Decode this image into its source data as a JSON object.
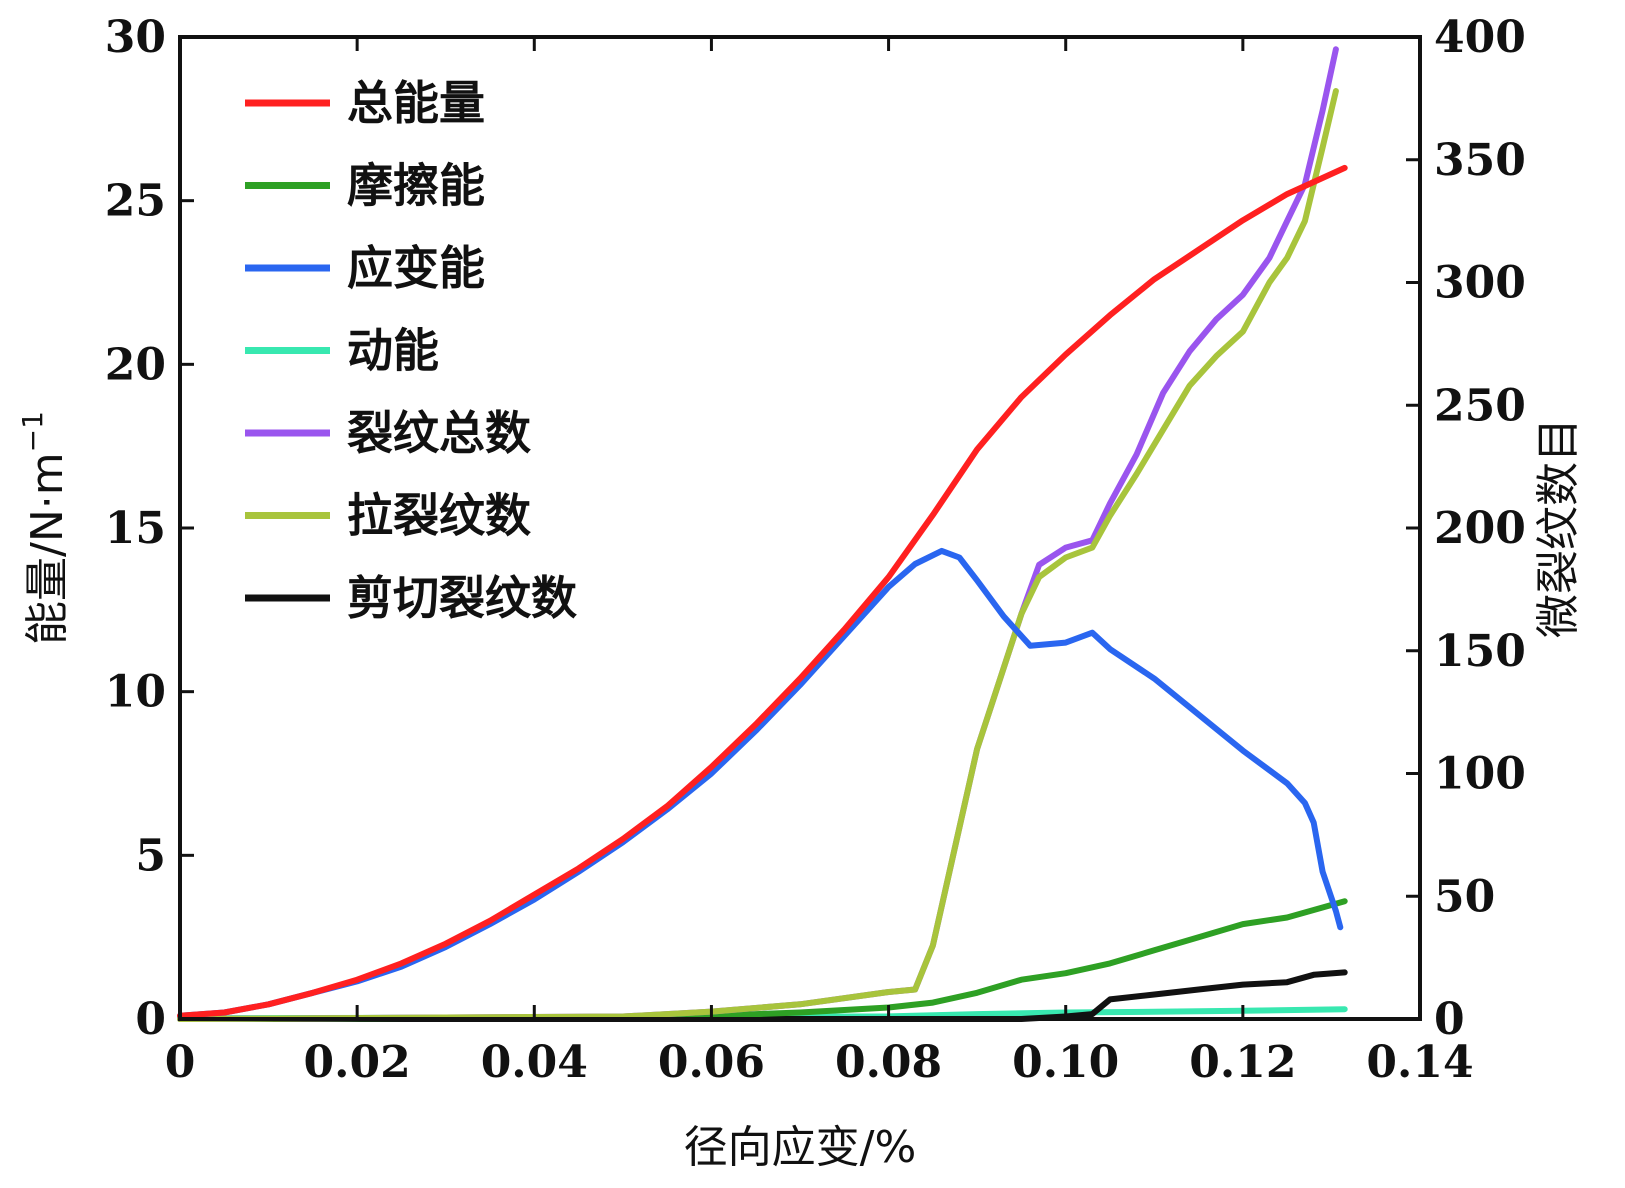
{
  "chart_data": {
    "type": "line",
    "xlabel": "径向应变/%",
    "ylabel": "能量/N·m",
    "ylabel_sup": "−1",
    "y2label": "微裂纹数目",
    "xlim": [
      0,
      0.14
    ],
    "ylim": [
      0,
      30
    ],
    "y2lim": [
      0,
      400
    ],
    "legend_position": "top-left",
    "grid": false,
    "x_ticks": [
      0,
      0.02,
      0.04,
      0.06,
      0.08,
      0.1,
      0.12,
      0.14
    ],
    "x_tick_labels": [
      "0",
      "0.02",
      "0.04",
      "0.06",
      "0.08",
      "0.10",
      "0.12",
      "0.14"
    ],
    "y_ticks": [
      0,
      5,
      10,
      15,
      20,
      25,
      30
    ],
    "y_tick_labels": [
      "0",
      "5",
      "10",
      "15",
      "20",
      "25",
      "30"
    ],
    "y2_ticks": [
      0,
      50,
      100,
      150,
      200,
      250,
      300,
      350,
      400
    ],
    "y2_tick_labels": [
      "0",
      "50",
      "100",
      "150",
      "200",
      "250",
      "300",
      "350",
      "400"
    ],
    "series": [
      {
        "name": "总能量",
        "axis": "left",
        "color": "#ff2020",
        "x": [
          0,
          0.005,
          0.01,
          0.015,
          0.02,
          0.025,
          0.03,
          0.035,
          0.04,
          0.045,
          0.05,
          0.055,
          0.06,
          0.065,
          0.07,
          0.075,
          0.08,
          0.085,
          0.09,
          0.095,
          0.1,
          0.105,
          0.11,
          0.115,
          0.12,
          0.125,
          0.1315
        ],
        "y": [
          0.1,
          0.2,
          0.45,
          0.8,
          1.2,
          1.7,
          2.3,
          3.0,
          3.8,
          4.6,
          5.5,
          6.5,
          7.7,
          9.0,
          10.4,
          11.9,
          13.5,
          15.4,
          17.4,
          19.0,
          20.3,
          21.5,
          22.6,
          23.5,
          24.4,
          25.2,
          26.0
        ]
      },
      {
        "name": "摩擦能",
        "axis": "left",
        "color": "#2ea024",
        "x": [
          0,
          0.02,
          0.04,
          0.06,
          0.07,
          0.08,
          0.085,
          0.09,
          0.095,
          0.1,
          0.105,
          0.11,
          0.115,
          0.12,
          0.125,
          0.1315
        ],
        "y": [
          0,
          0.02,
          0.05,
          0.1,
          0.2,
          0.35,
          0.5,
          0.8,
          1.2,
          1.4,
          1.7,
          2.1,
          2.5,
          2.9,
          3.1,
          3.6
        ]
      },
      {
        "name": "应变能",
        "axis": "left",
        "color": "#2a66f0",
        "x": [
          0,
          0.005,
          0.01,
          0.015,
          0.02,
          0.025,
          0.03,
          0.035,
          0.04,
          0.045,
          0.05,
          0.055,
          0.06,
          0.065,
          0.07,
          0.075,
          0.08,
          0.083,
          0.086,
          0.088,
          0.09,
          0.093,
          0.096,
          0.1,
          0.103,
          0.105,
          0.11,
          0.115,
          0.12,
          0.125,
          0.127,
          0.128,
          0.129,
          0.1305,
          0.131
        ],
        "y": [
          0.1,
          0.2,
          0.45,
          0.8,
          1.15,
          1.6,
          2.2,
          2.9,
          3.65,
          4.5,
          5.4,
          6.4,
          7.5,
          8.8,
          10.2,
          11.7,
          13.2,
          13.9,
          14.3,
          14.1,
          13.4,
          12.3,
          11.4,
          11.5,
          11.8,
          11.3,
          10.4,
          9.3,
          8.2,
          7.2,
          6.6,
          6.0,
          4.5,
          3.3,
          2.8
        ]
      },
      {
        "name": "动能",
        "axis": "left",
        "color": "#38e8b0",
        "x": [
          0,
          0.05,
          0.08,
          0.09,
          0.1,
          0.11,
          0.12,
          0.1315
        ],
        "y": [
          0.02,
          0.05,
          0.08,
          0.15,
          0.2,
          0.22,
          0.25,
          0.3
        ]
      },
      {
        "name": "裂纹总数",
        "axis": "right",
        "color": "#9a55ee",
        "x": [
          0,
          0.05,
          0.06,
          0.07,
          0.08,
          0.083,
          0.085,
          0.09,
          0.095,
          0.097,
          0.1,
          0.103,
          0.105,
          0.108,
          0.111,
          0.114,
          0.117,
          0.12,
          0.123,
          0.125,
          0.127,
          0.129,
          0.1305
        ],
        "y": [
          0,
          1,
          3,
          6,
          11,
          12,
          30,
          110,
          165,
          185,
          192,
          195,
          210,
          230,
          255,
          272,
          285,
          295,
          310,
          325,
          340,
          370,
          395
        ]
      },
      {
        "name": "拉裂纹数",
        "axis": "right",
        "color": "#a8c43c",
        "x": [
          0,
          0.05,
          0.06,
          0.07,
          0.08,
          0.083,
          0.085,
          0.09,
          0.095,
          0.097,
          0.1,
          0.103,
          0.105,
          0.108,
          0.111,
          0.114,
          0.117,
          0.12,
          0.123,
          0.125,
          0.127,
          0.129,
          0.1305
        ],
        "y": [
          0,
          1,
          3,
          6,
          11,
          12,
          30,
          110,
          165,
          180,
          188,
          192,
          205,
          222,
          240,
          258,
          270,
          280,
          300,
          310,
          325,
          355,
          378
        ]
      },
      {
        "name": "剪切裂纹数",
        "axis": "right",
        "color": "#111111",
        "x": [
          0,
          0.095,
          0.1,
          0.103,
          0.105,
          0.11,
          0.115,
          0.12,
          0.125,
          0.128,
          0.1315
        ],
        "y": [
          0,
          0,
          1,
          2,
          8,
          10,
          12,
          14,
          15,
          18,
          19
        ]
      }
    ]
  }
}
